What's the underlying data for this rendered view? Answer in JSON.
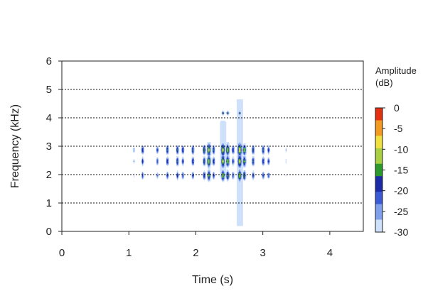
{
  "chart_data": {
    "type": "heatmap",
    "title": "",
    "xlabel": "Time (s)",
    "ylabel": "Frequency (kHz)",
    "xlim": [
      0,
      4.5
    ],
    "ylim": [
      0,
      6
    ],
    "x_ticks": [
      "0",
      "1",
      "2",
      "3",
      "4"
    ],
    "y_ticks": [
      "0",
      "1",
      "2",
      "3",
      "4",
      "5",
      "6"
    ],
    "grid": "horizontal dotted lines at 1-6 kHz",
    "legend": {
      "title_line1": "Amplitude",
      "title_line2": "(dB)",
      "placement": "right",
      "range": [
        -30,
        0
      ],
      "ticks": [
        "0",
        "-5",
        "-10",
        "-15",
        "-20",
        "-25",
        "-30"
      ]
    },
    "colors": {
      "level_0": "#e53010",
      "level_1": "#f59a20",
      "level_2": "#f2e040",
      "level_3": "#a8d040",
      "level_4": "#2a9a2a",
      "level_5": "#1a2aa8",
      "level_6": "#3a5ad8",
      "level_7": "#80a0ee",
      "level_8": "#cfe0fa"
    },
    "energy_bands_khz": [
      1.95,
      2.45,
      2.85
    ],
    "energy_band_peak_db": [
      -15,
      -11,
      -9
    ],
    "energy_bursts": [
      {
        "time_s": 1.07,
        "peak_db": -24
      },
      {
        "time_s": 1.2,
        "peak_db": -17
      },
      {
        "time_s": 1.42,
        "peak_db": -19
      },
      {
        "time_s": 1.57,
        "peak_db": -16
      },
      {
        "time_s": 1.72,
        "peak_db": -15
      },
      {
        "time_s": 1.8,
        "peak_db": -17
      },
      {
        "time_s": 1.95,
        "peak_db": -16
      },
      {
        "time_s": 2.12,
        "peak_db": -14
      },
      {
        "time_s": 2.19,
        "peak_db": -9
      },
      {
        "time_s": 2.26,
        "peak_db": -16
      },
      {
        "time_s": 2.4,
        "peak_db": -8
      },
      {
        "time_s": 2.47,
        "peak_db": -10
      },
      {
        "time_s": 2.55,
        "peak_db": -17
      },
      {
        "time_s": 2.65,
        "peak_db": -7
      },
      {
        "time_s": 2.72,
        "peak_db": -11
      },
      {
        "time_s": 2.85,
        "peak_db": -15
      },
      {
        "time_s": 3.0,
        "peak_db": -16
      },
      {
        "time_s": 3.08,
        "peak_db": -18
      },
      {
        "time_s": 3.34,
        "peak_db": -26
      }
    ]
  }
}
